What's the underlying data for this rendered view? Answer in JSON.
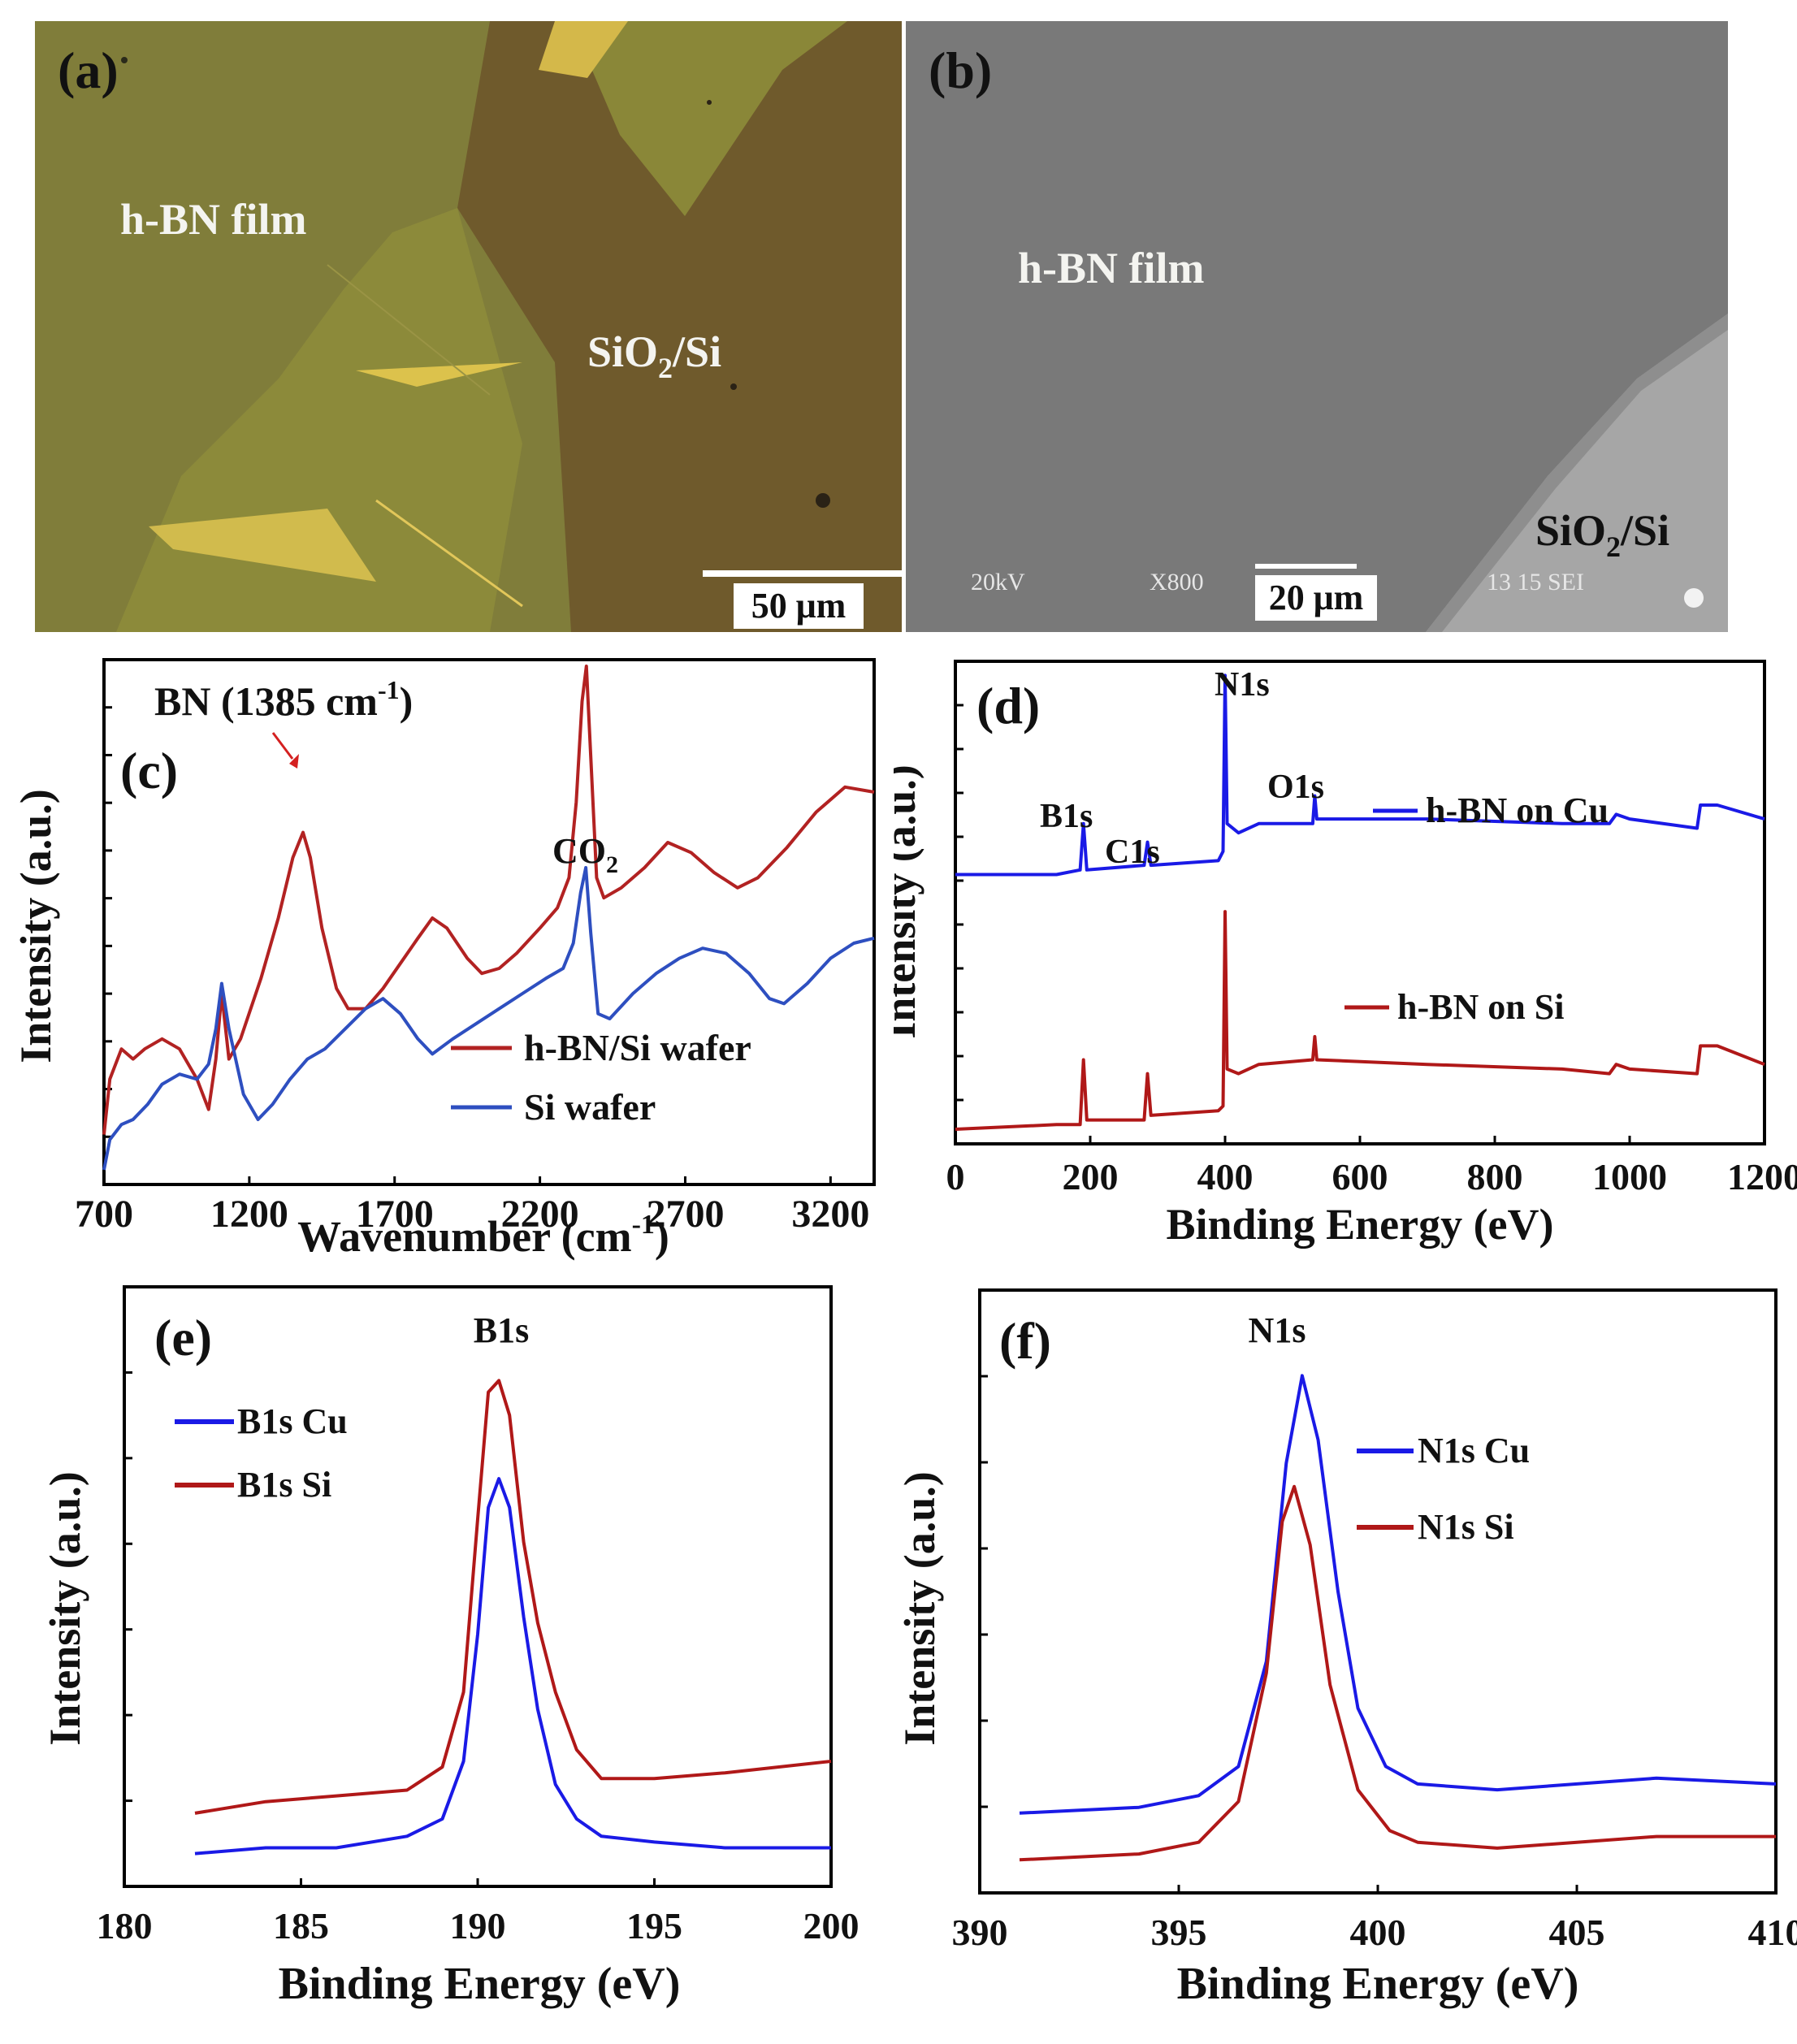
{
  "panel_a": {
    "label": "(a)",
    "film_label": "h-BN film",
    "substrate_base": "SiO",
    "substrate_sub": "2",
    "substrate_tail": "/Si",
    "scale_bar": "50 μm"
  },
  "panel_b": {
    "label": "(b)",
    "film_label": "h-BN film",
    "substrate_base": "SiO",
    "substrate_sub": "2",
    "substrate_tail": "/Si",
    "scale_bar": "20 μm",
    "info_kv": "20kV",
    "info_mag": "X800",
    "info_id": "13 15 SEI"
  },
  "chart_data": [
    {
      "id": "c",
      "type": "line",
      "panel_label": "(c)",
      "xlabel_base": "Wavenumber (cm",
      "xlabel_sup": "-1",
      "xlabel_tail": ")",
      "ylabel": "Intensity (a.u.)",
      "xlim": [
        700,
        3350
      ],
      "xticks": [
        "700",
        "1200",
        "1700",
        "2200",
        "2700",
        "3200"
      ],
      "annotations": {
        "bn_base": "BN (1385 cm",
        "bn_sup": "-1",
        "bn_tail": ")",
        "co2_base": "CO",
        "co2_sub": "2"
      },
      "series": [
        {
          "name": "h-BN/Si wafer",
          "color": "#b22222",
          "points": [
            [
              700,
              0.07
            ],
            [
              720,
              0.18
            ],
            [
              760,
              0.24
            ],
            [
              800,
              0.22
            ],
            [
              840,
              0.24
            ],
            [
              900,
              0.26
            ],
            [
              960,
              0.24
            ],
            [
              1020,
              0.18
            ],
            [
              1060,
              0.12
            ],
            [
              1085,
              0.22
            ],
            [
              1105,
              0.35
            ],
            [
              1130,
              0.22
            ],
            [
              1170,
              0.26
            ],
            [
              1240,
              0.38
            ],
            [
              1300,
              0.5
            ],
            [
              1350,
              0.62
            ],
            [
              1385,
              0.67
            ],
            [
              1410,
              0.62
            ],
            [
              1450,
              0.48
            ],
            [
              1500,
              0.36
            ],
            [
              1540,
              0.32
            ],
            [
              1600,
              0.32
            ],
            [
              1660,
              0.36
            ],
            [
              1720,
              0.41
            ],
            [
              1780,
              0.46
            ],
            [
              1830,
              0.5
            ],
            [
              1880,
              0.48
            ],
            [
              1950,
              0.42
            ],
            [
              2000,
              0.39
            ],
            [
              2060,
              0.4
            ],
            [
              2120,
              0.43
            ],
            [
              2200,
              0.48
            ],
            [
              2260,
              0.52
            ],
            [
              2300,
              0.58
            ],
            [
              2325,
              0.73
            ],
            [
              2345,
              0.93
            ],
            [
              2360,
              1.0
            ],
            [
              2375,
              0.82
            ],
            [
              2395,
              0.58
            ],
            [
              2420,
              0.54
            ],
            [
              2480,
              0.56
            ],
            [
              2560,
              0.6
            ],
            [
              2640,
              0.65
            ],
            [
              2720,
              0.63
            ],
            [
              2800,
              0.59
            ],
            [
              2880,
              0.56
            ],
            [
              2950,
              0.58
            ],
            [
              3050,
              0.64
            ],
            [
              3150,
              0.71
            ],
            [
              3250,
              0.76
            ],
            [
              3350,
              0.75
            ]
          ]
        },
        {
          "name": "Si wafer",
          "color": "#2e4fc0",
          "points": [
            [
              700,
              0.0
            ],
            [
              720,
              0.06
            ],
            [
              760,
              0.09
            ],
            [
              800,
              0.1
            ],
            [
              850,
              0.13
            ],
            [
              900,
              0.17
            ],
            [
              960,
              0.19
            ],
            [
              1020,
              0.18
            ],
            [
              1060,
              0.21
            ],
            [
              1085,
              0.28
            ],
            [
              1105,
              0.37
            ],
            [
              1130,
              0.28
            ],
            [
              1180,
              0.15
            ],
            [
              1230,
              0.1
            ],
            [
              1280,
              0.13
            ],
            [
              1340,
              0.18
            ],
            [
              1400,
              0.22
            ],
            [
              1460,
              0.24
            ],
            [
              1530,
              0.28
            ],
            [
              1600,
              0.32
            ],
            [
              1660,
              0.34
            ],
            [
              1720,
              0.31
            ],
            [
              1780,
              0.26
            ],
            [
              1830,
              0.23
            ],
            [
              1900,
              0.26
            ],
            [
              1980,
              0.29
            ],
            [
              2060,
              0.32
            ],
            [
              2140,
              0.35
            ],
            [
              2220,
              0.38
            ],
            [
              2280,
              0.4
            ],
            [
              2315,
              0.45
            ],
            [
              2340,
              0.55
            ],
            [
              2358,
              0.6
            ],
            [
              2375,
              0.47
            ],
            [
              2400,
              0.31
            ],
            [
              2440,
              0.3
            ],
            [
              2520,
              0.35
            ],
            [
              2600,
              0.39
            ],
            [
              2680,
              0.42
            ],
            [
              2760,
              0.44
            ],
            [
              2840,
              0.43
            ],
            [
              2920,
              0.39
            ],
            [
              2990,
              0.34
            ],
            [
              3040,
              0.33
            ],
            [
              3120,
              0.37
            ],
            [
              3200,
              0.42
            ],
            [
              3280,
              0.45
            ],
            [
              3350,
              0.46
            ]
          ]
        }
      ]
    },
    {
      "id": "d",
      "type": "line",
      "panel_label": "(d)",
      "xlabel": "Binding Energy (eV)",
      "ylabel": "Intensity (a.u.)",
      "xlim": [
        0,
        1200
      ],
      "xticks": [
        "0",
        "200",
        "400",
        "600",
        "800",
        "1000",
        "1200"
      ],
      "peaks": {
        "b1s": "B1s",
        "c1s": "C1s",
        "n1s": "N1s",
        "o1s": "O1s"
      },
      "series": [
        {
          "name": "h-BN on Cu",
          "color": "#1a1ae6",
          "points": [
            [
              0,
              0.55
            ],
            [
              150,
              0.55
            ],
            [
              185,
              0.56
            ],
            [
              190,
              0.66
            ],
            [
              195,
              0.56
            ],
            [
              280,
              0.57
            ],
            [
              285,
              0.62
            ],
            [
              290,
              0.57
            ],
            [
              390,
              0.58
            ],
            [
              397,
              0.6
            ],
            [
              400,
              0.98
            ],
            [
              403,
              0.66
            ],
            [
              420,
              0.64
            ],
            [
              450,
              0.66
            ],
            [
              530,
              0.66
            ],
            [
              533,
              0.72
            ],
            [
              536,
              0.67
            ],
            [
              700,
              0.67
            ],
            [
              900,
              0.66
            ],
            [
              970,
              0.66
            ],
            [
              980,
              0.68
            ],
            [
              1000,
              0.67
            ],
            [
              1100,
              0.65
            ],
            [
              1105,
              0.7
            ],
            [
              1130,
              0.7
            ],
            [
              1200,
              0.67
            ]
          ]
        },
        {
          "name": "h-BN on Si",
          "color": "#b01818",
          "points": [
            [
              0,
              0.0
            ],
            [
              150,
              0.01
            ],
            [
              185,
              0.01
            ],
            [
              190,
              0.15
            ],
            [
              195,
              0.02
            ],
            [
              280,
              0.02
            ],
            [
              285,
              0.12
            ],
            [
              290,
              0.03
            ],
            [
              390,
              0.04
            ],
            [
              397,
              0.05
            ],
            [
              400,
              0.47
            ],
            [
              403,
              0.13
            ],
            [
              420,
              0.12
            ],
            [
              450,
              0.14
            ],
            [
              530,
              0.15
            ],
            [
              533,
              0.2
            ],
            [
              536,
              0.15
            ],
            [
              700,
              0.14
            ],
            [
              900,
              0.13
            ],
            [
              970,
              0.12
            ],
            [
              980,
              0.14
            ],
            [
              1000,
              0.13
            ],
            [
              1100,
              0.12
            ],
            [
              1105,
              0.18
            ],
            [
              1130,
              0.18
            ],
            [
              1200,
              0.14
            ]
          ]
        }
      ]
    },
    {
      "id": "e",
      "type": "line",
      "panel_label": "(e)",
      "xlabel": "Binding Energy (eV)",
      "ylabel": "Intensity (a.u.)",
      "xlim": [
        180,
        200
      ],
      "xticks": [
        "180",
        "185",
        "190",
        "195",
        "200"
      ],
      "peak_label": "B1s",
      "series": [
        {
          "name": "B1s Cu",
          "color": "#1a1ae6",
          "points": [
            [
              182,
              0.04
            ],
            [
              184,
              0.05
            ],
            [
              186,
              0.05
            ],
            [
              188,
              0.07
            ],
            [
              189,
              0.1
            ],
            [
              189.6,
              0.2
            ],
            [
              190,
              0.42
            ],
            [
              190.3,
              0.64
            ],
            [
              190.6,
              0.69
            ],
            [
              190.9,
              0.64
            ],
            [
              191.3,
              0.45
            ],
            [
              191.7,
              0.29
            ],
            [
              192.2,
              0.16
            ],
            [
              192.8,
              0.1
            ],
            [
              193.5,
              0.07
            ],
            [
              195,
              0.06
            ],
            [
              197,
              0.05
            ],
            [
              200,
              0.05
            ]
          ]
        },
        {
          "name": "B1s Si",
          "color": "#b01818",
          "points": [
            [
              182,
              0.11
            ],
            [
              184,
              0.13
            ],
            [
              186,
              0.14
            ],
            [
              188,
              0.15
            ],
            [
              189,
              0.19
            ],
            [
              189.6,
              0.32
            ],
            [
              190,
              0.62
            ],
            [
              190.3,
              0.84
            ],
            [
              190.6,
              0.86
            ],
            [
              190.9,
              0.8
            ],
            [
              191.3,
              0.58
            ],
            [
              191.7,
              0.44
            ],
            [
              192.2,
              0.32
            ],
            [
              192.8,
              0.22
            ],
            [
              193.5,
              0.17
            ],
            [
              195,
              0.17
            ],
            [
              197,
              0.18
            ],
            [
              200,
              0.2
            ]
          ]
        }
      ]
    },
    {
      "id": "f",
      "type": "line",
      "panel_label": "(f)",
      "xlabel": "Binding Energy (eV)",
      "ylabel": "Intensity (a.u.)",
      "xlim": [
        390,
        410
      ],
      "xticks": [
        "390",
        "395",
        "400",
        "405",
        "410"
      ],
      "peak_label": "N1s",
      "series": [
        {
          "name": "N1s Cu",
          "color": "#1a1ae6",
          "points": [
            [
              391,
              0.12
            ],
            [
              394,
              0.13
            ],
            [
              395.5,
              0.15
            ],
            [
              396.5,
              0.2
            ],
            [
              397.2,
              0.38
            ],
            [
              397.7,
              0.72
            ],
            [
              398.1,
              0.87
            ],
            [
              398.5,
              0.76
            ],
            [
              399,
              0.5
            ],
            [
              399.5,
              0.3
            ],
            [
              400.2,
              0.2
            ],
            [
              401,
              0.17
            ],
            [
              403,
              0.16
            ],
            [
              405,
              0.17
            ],
            [
              407,
              0.18
            ],
            [
              410,
              0.17
            ]
          ]
        },
        {
          "name": "N1s  Si",
          "color": "#b01818",
          "points": [
            [
              391,
              0.04
            ],
            [
              394,
              0.05
            ],
            [
              395.5,
              0.07
            ],
            [
              396.5,
              0.14
            ],
            [
              397.2,
              0.36
            ],
            [
              397.6,
              0.62
            ],
            [
              397.9,
              0.68
            ],
            [
              398.3,
              0.58
            ],
            [
              398.8,
              0.34
            ],
            [
              399.5,
              0.16
            ],
            [
              400.3,
              0.09
            ],
            [
              401,
              0.07
            ],
            [
              403,
              0.06
            ],
            [
              405,
              0.07
            ],
            [
              407,
              0.08
            ],
            [
              410,
              0.08
            ]
          ]
        }
      ]
    }
  ]
}
